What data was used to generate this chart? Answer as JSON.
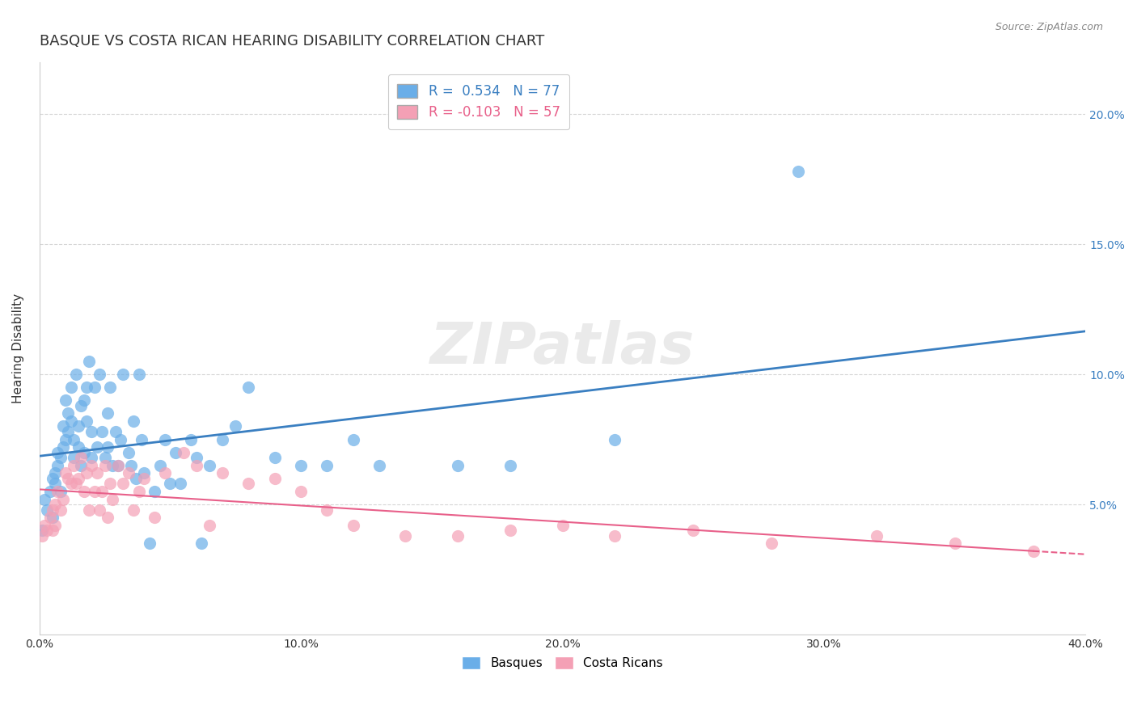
{
  "title": "BASQUE VS COSTA RICAN HEARING DISABILITY CORRELATION CHART",
  "source": "Source: ZipAtlas.com",
  "ylabel_label": "Hearing Disability",
  "xlim": [
    0.0,
    0.4
  ],
  "ylim": [
    0.0,
    0.22
  ],
  "blue_R": 0.534,
  "blue_N": 77,
  "pink_R": -0.103,
  "pink_N": 57,
  "watermark": "ZIPatlas",
  "blue_color": "#6aaee8",
  "pink_color": "#f4a0b5",
  "blue_line_color": "#3a7fc1",
  "pink_line_color": "#e8608a",
  "basque_points_x": [
    0.001,
    0.002,
    0.003,
    0.004,
    0.005,
    0.005,
    0.006,
    0.006,
    0.007,
    0.007,
    0.008,
    0.008,
    0.009,
    0.009,
    0.01,
    0.01,
    0.011,
    0.011,
    0.012,
    0.012,
    0.013,
    0.013,
    0.014,
    0.015,
    0.015,
    0.016,
    0.016,
    0.017,
    0.017,
    0.018,
    0.018,
    0.019,
    0.02,
    0.02,
    0.021,
    0.022,
    0.023,
    0.024,
    0.025,
    0.026,
    0.026,
    0.027,
    0.028,
    0.029,
    0.03,
    0.031,
    0.032,
    0.034,
    0.035,
    0.036,
    0.037,
    0.038,
    0.039,
    0.04,
    0.042,
    0.044,
    0.046,
    0.048,
    0.05,
    0.052,
    0.054,
    0.058,
    0.06,
    0.062,
    0.065,
    0.07,
    0.075,
    0.08,
    0.09,
    0.1,
    0.11,
    0.12,
    0.13,
    0.16,
    0.18,
    0.22,
    0.29
  ],
  "basque_points_y": [
    0.04,
    0.052,
    0.048,
    0.055,
    0.06,
    0.045,
    0.062,
    0.058,
    0.065,
    0.07,
    0.068,
    0.055,
    0.072,
    0.08,
    0.075,
    0.09,
    0.085,
    0.078,
    0.082,
    0.095,
    0.068,
    0.075,
    0.1,
    0.08,
    0.072,
    0.088,
    0.065,
    0.09,
    0.07,
    0.095,
    0.082,
    0.105,
    0.068,
    0.078,
    0.095,
    0.072,
    0.1,
    0.078,
    0.068,
    0.085,
    0.072,
    0.095,
    0.065,
    0.078,
    0.065,
    0.075,
    0.1,
    0.07,
    0.065,
    0.082,
    0.06,
    0.1,
    0.075,
    0.062,
    0.035,
    0.055,
    0.065,
    0.075,
    0.058,
    0.07,
    0.058,
    0.075,
    0.068,
    0.035,
    0.065,
    0.075,
    0.08,
    0.095,
    0.068,
    0.065,
    0.065,
    0.075,
    0.065,
    0.065,
    0.065,
    0.075,
    0.178
  ],
  "costa_points_x": [
    0.001,
    0.002,
    0.003,
    0.004,
    0.005,
    0.005,
    0.006,
    0.006,
    0.007,
    0.008,
    0.009,
    0.01,
    0.011,
    0.012,
    0.013,
    0.014,
    0.015,
    0.016,
    0.017,
    0.018,
    0.019,
    0.02,
    0.021,
    0.022,
    0.023,
    0.024,
    0.025,
    0.026,
    0.027,
    0.028,
    0.03,
    0.032,
    0.034,
    0.036,
    0.038,
    0.04,
    0.044,
    0.048,
    0.055,
    0.06,
    0.065,
    0.07,
    0.08,
    0.09,
    0.1,
    0.11,
    0.12,
    0.14,
    0.16,
    0.18,
    0.2,
    0.22,
    0.25,
    0.28,
    0.32,
    0.35,
    0.38
  ],
  "costa_points_y": [
    0.038,
    0.042,
    0.04,
    0.045,
    0.048,
    0.04,
    0.05,
    0.042,
    0.055,
    0.048,
    0.052,
    0.062,
    0.06,
    0.058,
    0.065,
    0.058,
    0.06,
    0.068,
    0.055,
    0.062,
    0.048,
    0.065,
    0.055,
    0.062,
    0.048,
    0.055,
    0.065,
    0.045,
    0.058,
    0.052,
    0.065,
    0.058,
    0.062,
    0.048,
    0.055,
    0.06,
    0.045,
    0.062,
    0.07,
    0.065,
    0.042,
    0.062,
    0.058,
    0.06,
    0.055,
    0.048,
    0.042,
    0.038,
    0.038,
    0.04,
    0.042,
    0.038,
    0.04,
    0.035,
    0.038,
    0.035,
    0.032
  ],
  "grid_color": "#cccccc",
  "background_color": "#ffffff",
  "title_fontsize": 13,
  "axis_label_fontsize": 11,
  "tick_fontsize": 10,
  "legend_fontsize": 12
}
